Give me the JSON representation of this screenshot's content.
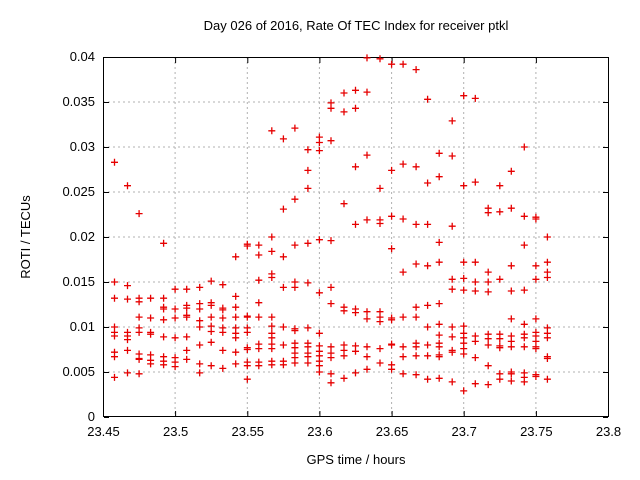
{
  "chart_data": {
    "type": "scatter",
    "title": "Day 026 of 2016, Rate Of TEC Index for receiver ptkl",
    "xlabel": "GPS time / hours",
    "ylabel": "ROTI / TECUs",
    "xlim": [
      23.45,
      23.8
    ],
    "ylim": [
      0,
      0.04
    ],
    "xticks": [
      23.45,
      23.5,
      23.55,
      23.6,
      23.65,
      23.7,
      23.75,
      23.8
    ],
    "yticks": [
      0,
      0.005,
      0.01,
      0.015,
      0.02,
      0.025,
      0.03,
      0.035,
      0.04
    ],
    "xtick_labels": [
      "23.45",
      "23.5",
      "23.55",
      "23.6",
      "23.65",
      "23.7",
      "23.75",
      "23.8"
    ],
    "ytick_labels": [
      "0",
      "0.005",
      "0.01",
      "0.015",
      "0.02",
      "0.025",
      "0.03",
      "0.035",
      "0.04"
    ],
    "grid": true,
    "legend": false,
    "marker": "plus",
    "marker_color": "#e60000",
    "grid_color": "#b0b0b0",
    "axis_color": "#000000",
    "points_by_time": [
      [
        23.458,
        [
          0.0283,
          0.015,
          0.0132,
          0.01,
          0.0094,
          0.009,
          0.0072,
          0.0067,
          0.0044
        ]
      ],
      [
        23.467,
        [
          0.0257,
          0.0146,
          0.0131,
          0.0094,
          0.009,
          0.0086,
          0.0074,
          0.0049
        ]
      ],
      [
        23.475,
        [
          0.0226,
          0.0132,
          0.0128,
          0.0111,
          0.0099,
          0.0094,
          0.007,
          0.0065,
          0.0064,
          0.0048
        ]
      ],
      [
        23.483,
        [
          0.0132,
          0.011,
          0.0094,
          0.0092,
          0.0069,
          0.0063,
          0.0059
        ]
      ],
      [
        23.492,
        [
          0.0193,
          0.0132,
          0.0122,
          0.012,
          0.0108,
          0.0089,
          0.0067,
          0.0062,
          0.0058
        ]
      ],
      [
        23.5,
        [
          0.0142,
          0.012,
          0.011,
          0.0088,
          0.0066,
          0.0061,
          0.0056
        ]
      ],
      [
        23.508,
        [
          0.0142,
          0.0124,
          0.0121,
          0.0113,
          0.0111,
          0.0089,
          0.0074,
          0.0064
        ]
      ],
      [
        23.517,
        [
          0.0144,
          0.0126,
          0.012,
          0.0107,
          0.01,
          0.008,
          0.0059,
          0.0049
        ]
      ],
      [
        23.525,
        [
          0.0151,
          0.0127,
          0.0124,
          0.0111,
          0.0101,
          0.0095,
          0.0083,
          0.0057
        ]
      ],
      [
        23.533,
        [
          0.0147,
          0.0121,
          0.0119,
          0.011,
          0.0099,
          0.0094,
          0.0074,
          0.0054
        ]
      ],
      [
        23.542,
        [
          0.0178,
          0.0134,
          0.0122,
          0.0111,
          0.0099,
          0.0093,
          0.0088,
          0.0072,
          0.0059
        ]
      ],
      [
        23.55,
        [
          0.0192,
          0.019,
          0.0112,
          0.0111,
          0.0099,
          0.0094,
          0.0077,
          0.0075,
          0.0061,
          0.0057,
          0.0042
        ]
      ],
      [
        23.558,
        [
          0.0191,
          0.018,
          0.0152,
          0.0127,
          0.0111,
          0.0081,
          0.0076,
          0.0061,
          0.0057
        ]
      ],
      [
        23.567,
        [
          0.0318,
          0.02,
          0.0184,
          0.0159,
          0.0155,
          0.0111,
          0.0101,
          0.0093,
          0.0088,
          0.0081,
          0.0076,
          0.0062,
          0.0058
        ]
      ],
      [
        23.575,
        [
          0.0309,
          0.0231,
          0.0178,
          0.0144,
          0.01,
          0.008,
          0.0062,
          0.0058
        ]
      ],
      [
        23.583,
        [
          0.0321,
          0.0242,
          0.0191,
          0.015,
          0.0144,
          0.0098,
          0.0096,
          0.0082,
          0.0077,
          0.0071,
          0.0066,
          0.006
        ]
      ],
      [
        23.592,
        [
          0.0297,
          0.0274,
          0.0254,
          0.0193,
          0.0149,
          0.0099,
          0.0082,
          0.0078,
          0.0071,
          0.0067,
          0.006
        ]
      ],
      [
        23.6,
        [
          0.0311,
          0.0305,
          0.0296,
          0.0197,
          0.0138,
          0.0093,
          0.0079,
          0.0073,
          0.0068,
          0.0062,
          0.0057,
          0.005
        ]
      ],
      [
        23.608,
        [
          0.0349,
          0.0343,
          0.0307,
          0.0196,
          0.0144,
          0.0126,
          0.0078,
          0.0071,
          0.0066,
          0.0048,
          0.0038
        ]
      ],
      [
        23.617,
        [
          0.036,
          0.0339,
          0.0237,
          0.0122,
          0.0118,
          0.008,
          0.0074,
          0.0068,
          0.0043
        ]
      ],
      [
        23.625,
        [
          0.0363,
          0.0343,
          0.0278,
          0.0214,
          0.012,
          0.0116,
          0.0079,
          0.0073,
          0.0049
        ]
      ],
      [
        23.633,
        [
          0.0399,
          0.0361,
          0.0291,
          0.0219,
          0.0117,
          0.0109,
          0.0078,
          0.0067,
          0.0053
        ]
      ],
      [
        23.642,
        [
          0.0398,
          0.0254,
          0.0219,
          0.0215,
          0.0117,
          0.0111,
          0.0106,
          0.0076,
          0.006
        ]
      ],
      [
        23.65,
        [
          0.0392,
          0.0274,
          0.0223,
          0.0187,
          0.011,
          0.0108,
          0.0081,
          0.008,
          0.0058,
          0.0053
        ]
      ],
      [
        23.658,
        [
          0.0392,
          0.0281,
          0.022,
          0.0161,
          0.0111,
          0.0078,
          0.0067,
          0.0048
        ]
      ],
      [
        23.667,
        [
          0.0386,
          0.0278,
          0.0214,
          0.017,
          0.0122,
          0.0111,
          0.0082,
          0.0078,
          0.0068,
          0.0047
        ]
      ],
      [
        23.675,
        [
          0.0353,
          0.026,
          0.0214,
          0.0168,
          0.0124,
          0.01,
          0.008,
          0.0068,
          0.0042
        ]
      ],
      [
        23.683,
        [
          0.0293,
          0.0267,
          0.0194,
          0.0172,
          0.0126,
          0.0103,
          0.0091,
          0.0082,
          0.0078,
          0.0069,
          0.0067,
          0.0043
        ]
      ],
      [
        23.692,
        [
          0.0329,
          0.029,
          0.0212,
          0.0153,
          0.0142,
          0.01,
          0.0089,
          0.0074,
          0.0072,
          0.0039
        ]
      ],
      [
        23.7,
        [
          0.0357,
          0.0257,
          0.0172,
          0.0154,
          0.0141,
          0.0101,
          0.0093,
          0.0088,
          0.0082,
          0.0076,
          0.007,
          0.0029
        ]
      ],
      [
        23.708,
        [
          0.0354,
          0.0261,
          0.0172,
          0.015,
          0.014,
          0.009,
          0.0084,
          0.0066,
          0.0037
        ]
      ],
      [
        23.717,
        [
          0.0232,
          0.0227,
          0.0161,
          0.015,
          0.0139,
          0.0092,
          0.0087,
          0.008,
          0.0057,
          0.0036
        ]
      ],
      [
        23.725,
        [
          0.0257,
          0.0228,
          0.0153,
          0.0092,
          0.0087,
          0.0079,
          0.0077,
          0.0048,
          0.0042
        ]
      ],
      [
        23.733,
        [
          0.0273,
          0.0232,
          0.0168,
          0.014,
          0.0109,
          0.009,
          0.0084,
          0.0078,
          0.005,
          0.0048,
          0.004
        ]
      ],
      [
        23.742,
        [
          0.03,
          0.0223,
          0.0191,
          0.0141,
          0.0103,
          0.0092,
          0.0088,
          0.0078,
          0.0049,
          0.0044,
          0.0039
        ]
      ],
      [
        23.75,
        [
          0.0222,
          0.022,
          0.0168,
          0.0153,
          0.0109,
          0.0094,
          0.009,
          0.0084,
          0.0078,
          0.0076,
          0.0047,
          0.0045
        ]
      ],
      [
        23.758,
        [
          0.02,
          0.0172,
          0.0161,
          0.0155,
          0.0099,
          0.0093,
          0.0088,
          0.0067,
          0.0065,
          0.0042
        ]
      ]
    ]
  }
}
